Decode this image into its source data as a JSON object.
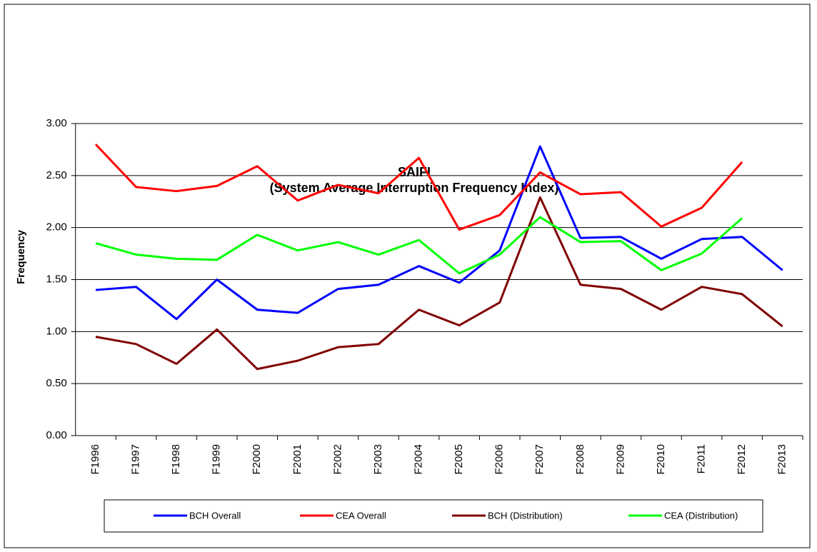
{
  "chart_data": {
    "type": "line",
    "title": [
      "SAIFI",
      "(System Average Interruption Frequency Index)"
    ],
    "y_label": "Frequency",
    "categories": [
      "F1996",
      "F1997",
      "F1998",
      "F1999",
      "F2000",
      "F2001",
      "F2002",
      "F2003",
      "F2004",
      "F2005",
      "F2006",
      "F2007",
      "F2008",
      "F2009",
      "F2010",
      "F2011",
      "F2012",
      "F2013"
    ],
    "series": [
      {
        "name": "BCH Overall",
        "color": "#0000ff",
        "values": [
          1.4,
          1.43,
          1.12,
          1.5,
          1.21,
          1.18,
          1.41,
          1.45,
          1.63,
          1.47,
          1.78,
          2.78,
          1.9,
          1.91,
          1.7,
          1.89,
          1.91,
          1.59
        ]
      },
      {
        "name": "CEA Overall",
        "color": "#ff0000",
        "values": [
          2.8,
          2.39,
          2.35,
          2.4,
          2.59,
          2.26,
          2.41,
          2.33,
          2.67,
          1.98,
          2.12,
          2.53,
          2.32,
          2.34,
          2.01,
          2.19,
          2.63,
          null
        ]
      },
      {
        "name": "BCH (Distribution)",
        "color": "#800000",
        "values": [
          0.95,
          0.88,
          0.69,
          1.02,
          0.64,
          0.72,
          0.85,
          0.88,
          1.21,
          1.06,
          1.28,
          2.29,
          1.45,
          1.41,
          1.21,
          1.43,
          1.36,
          1.05
        ]
      },
      {
        "name": "CEA (Distribution)",
        "color": "#00ff00",
        "values": [
          1.85,
          1.74,
          1.7,
          1.69,
          1.93,
          1.78,
          1.86,
          1.74,
          1.88,
          1.56,
          1.74,
          2.1,
          1.86,
          1.87,
          1.59,
          1.75,
          2.09,
          null
        ]
      }
    ],
    "ylim": [
      0,
      3
    ],
    "yticks": [
      {
        "value": 0,
        "label": "0.00"
      },
      {
        "value": 0.5,
        "label": "0.50"
      },
      {
        "value": 1,
        "label": "1.00"
      },
      {
        "value": 1.5,
        "label": "1.50"
      },
      {
        "value": 2,
        "label": "2.00"
      },
      {
        "value": 2.5,
        "label": "2.50"
      },
      {
        "value": 3,
        "label": "3.00"
      }
    ],
    "grid": true,
    "legend": "bottom"
  }
}
